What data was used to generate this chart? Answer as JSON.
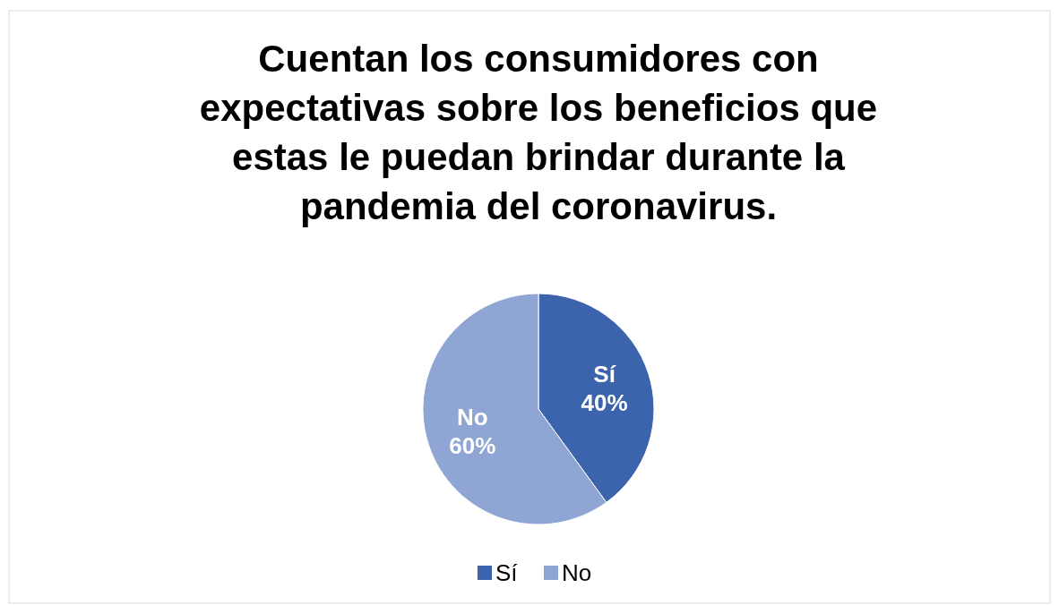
{
  "chart_data": {
    "type": "pie",
    "title": "Cuentan los consumidores con expectativas sobre los beneficios que estas le puedan brindar durante la pandemia del coronavirus.",
    "categories": [
      "Sí",
      "No"
    ],
    "values": [
      40,
      60
    ],
    "colors": [
      "#3c64ad",
      "#8fa5d4"
    ],
    "value_labels": [
      "40%",
      "60%"
    ],
    "legend": "bottom"
  }
}
